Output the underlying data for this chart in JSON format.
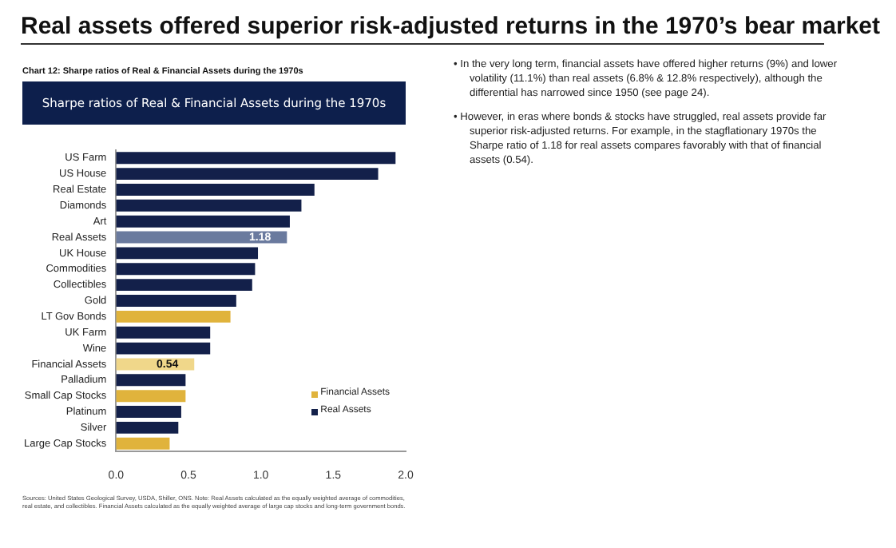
{
  "chart_data": {
    "type": "bar",
    "orientation": "horizontal",
    "title": "Real assets offered superior risk-adjusted returns in the 1970’s bear market",
    "subtitle": "Sharpe ratios of Real & Financial Assets during the 1970s",
    "categories": [
      "US Farm",
      "US House",
      "Real Estate",
      "Diamonds",
      "Art",
      "Real Assets",
      "UK House",
      "Commodities",
      "Collectibles",
      "Gold",
      "LT Gov Bonds",
      "UK Farm",
      "Wine",
      "Financial Assets",
      "Palladium",
      "Small Cap Stocks",
      "Platinum",
      "Silver",
      "Large Cap Stocks"
    ],
    "series": [
      {
        "name": "Financial Assets",
        "color": "#e0b33c",
        "colors": [
          "#e0b33c",
          "#e0b33c",
          "#e0b33c",
          "#e0b33c",
          "#e0b33c",
          "#e0b33c",
          "#e0b33c",
          "#e0b33c",
          "#e0b33c",
          "#e0b33c",
          "#e0b33c",
          "#e0b33c",
          "#e0b33c",
          "#f0d78a",
          "#e0b33c",
          "#e0b33c",
          "#e0b33c",
          "#e0b33c",
          "#e0b33c"
        ],
        "values": [
          null,
          null,
          null,
          null,
          null,
          null,
          null,
          null,
          null,
          null,
          0.79,
          null,
          null,
          0.54,
          null,
          0.48,
          null,
          null,
          0.37
        ],
        "value_labels": [
          null,
          null,
          null,
          null,
          null,
          null,
          null,
          null,
          null,
          null,
          null,
          null,
          null,
          "0.54",
          null,
          null,
          null,
          null,
          null
        ]
      },
      {
        "name": "Real Assets",
        "color": "#13204a",
        "colors": [
          "#13204a",
          "#13204a",
          "#13204a",
          "#13204a",
          "#13204a",
          "#6a7a9e",
          "#13204a",
          "#13204a",
          "#13204a",
          "#13204a",
          "#13204a",
          "#13204a",
          "#13204a",
          "#13204a",
          "#13204a",
          "#13204a",
          "#13204a",
          "#13204a",
          "#13204a"
        ],
        "values": [
          1.93,
          1.81,
          1.37,
          1.28,
          1.2,
          1.18,
          0.98,
          0.96,
          0.94,
          0.83,
          null,
          0.65,
          0.65,
          null,
          0.48,
          null,
          0.45,
          0.43,
          null
        ],
        "value_labels": [
          null,
          null,
          null,
          null,
          null,
          "1.18",
          null,
          null,
          null,
          null,
          null,
          null,
          null,
          null,
          null,
          null,
          null,
          null,
          null
        ]
      }
    ],
    "xlim": [
      0,
      2
    ],
    "xticks": [
      {
        "value": 0,
        "label": "0.0"
      },
      {
        "value": 0.5,
        "label": "0.5"
      },
      {
        "value": 1,
        "label": "1.0"
      },
      {
        "value": 1.5,
        "label": "1.5"
      },
      {
        "value": 2,
        "label": "2.0"
      }
    ],
    "grid": false,
    "legend": "bottom right",
    "annotations": [
      "Chart 12: Sharpe ratios of Real & Financial Assets during the 1970s",
      "• In the very long term, financial assets have offered higher returns (9%) and lower volatility (11.1%) than real assets (6.8% & 12.8% respectively), although the differential has narrowed since 1950 (see page 24).",
      "• However, in eras where bonds & stocks have struggled, real assets provide far superior risk-adjusted returns. For example, in the stagflationary 1970s the Sharpe ratio of 1.18 for real assets compares favorably with that of financial assets (0.54).",
      "Sources: United States Geological Survey, USDA, Shiller, ONS. Note: Real Assets calculated as the equally weighted average of commodities, real estate, and collectibles. Financial Assets calculated as the equally weighted average of large cap stocks and long-term government bonds."
    ]
  }
}
